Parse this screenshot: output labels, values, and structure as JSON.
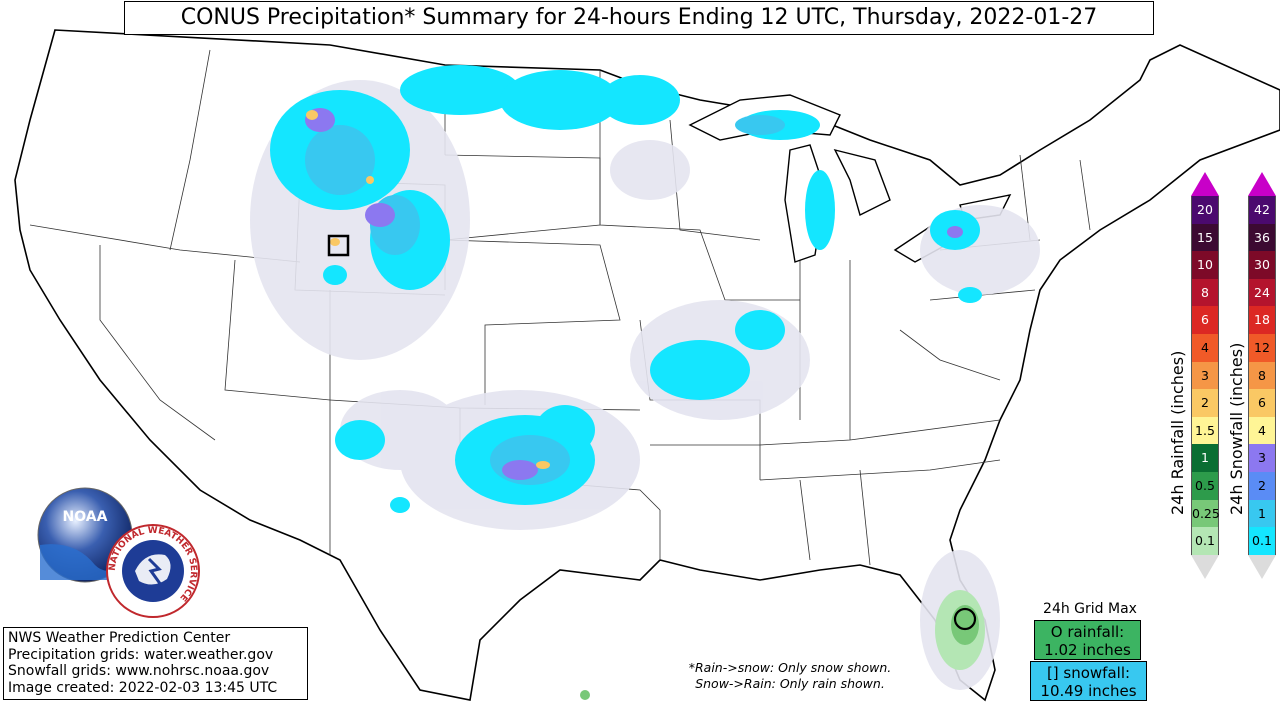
{
  "title": "CONUS Precipitation* Summary for 24-hours Ending 12 UTC, Thursday, 2022-01-27",
  "info": {
    "line1": "NWS Weather Prediction Center",
    "line2": "Precipitation grids: water.weather.gov",
    "line3": "Snowfall grids: www.nohrsc.noaa.gov",
    "line4": "Image created: 2022-02-03 13:45 UTC"
  },
  "note": {
    "line1": "*Rain->snow: Only snow shown.",
    "line2": "Snow->Rain: Only rain shown."
  },
  "grid_max": {
    "title": "24h Grid Max",
    "rain_line1": "O rainfall:",
    "rain_line2": "1.02 inches",
    "snow_line1": "[] snowfall:",
    "snow_line2": "10.49 inches",
    "rain_color": "#3cb462",
    "snow_color": "#38c8f0"
  },
  "rain_legend": {
    "label": "24h Rainfall (inches)",
    "levels": [
      {
        "value": "20",
        "color": "#4b0a6e"
      },
      {
        "value": "15",
        "color": "#3c0a32"
      },
      {
        "value": "10",
        "color": "#7d0a28"
      },
      {
        "value": "8",
        "color": "#b4142d"
      },
      {
        "value": "6",
        "color": "#dc2823"
      },
      {
        "value": "4",
        "color": "#f05a28"
      },
      {
        "value": "3",
        "color": "#f59646"
      },
      {
        "value": "2",
        "color": "#fac864"
      },
      {
        "value": "1.5",
        "color": "#fff596"
      },
      {
        "value": "1",
        "color": "#0a6e32"
      },
      {
        "value": "0.5",
        "color": "#2d9b4b"
      },
      {
        "value": "0.25",
        "color": "#78c878"
      },
      {
        "value": "0.1",
        "color": "#b4e6b4"
      }
    ]
  },
  "snow_legend": {
    "label": "24h Snowfall (inches)",
    "levels": [
      {
        "value": "42",
        "color": "#4b0a6e"
      },
      {
        "value": "36",
        "color": "#3c0a32"
      },
      {
        "value": "30",
        "color": "#7d0a28"
      },
      {
        "value": "24",
        "color": "#b4142d"
      },
      {
        "value": "18",
        "color": "#dc2823"
      },
      {
        "value": "12",
        "color": "#f05a28"
      },
      {
        "value": "8",
        "color": "#f59646"
      },
      {
        "value": "6",
        "color": "#fac864"
      },
      {
        "value": "4",
        "color": "#fff596"
      },
      {
        "value": "3",
        "color": "#8c78f0"
      },
      {
        "value": "2",
        "color": "#5a8cf5"
      },
      {
        "value": "1",
        "color": "#38c8f0"
      },
      {
        "value": "0.1",
        "color": "#14e6ff"
      }
    ]
  },
  "logos": {
    "noaa_text": "NOAA",
    "nws_text": "NATIONAL WEATHER SERVICE"
  },
  "colors": {
    "trace": "#e4e4f0",
    "snow_light": "#14e6ff",
    "snow_mid": "#38c8f0",
    "snow_heavy": "#8c78f0",
    "rain_light": "#b4e6b4",
    "rain_mid": "#78c878"
  }
}
